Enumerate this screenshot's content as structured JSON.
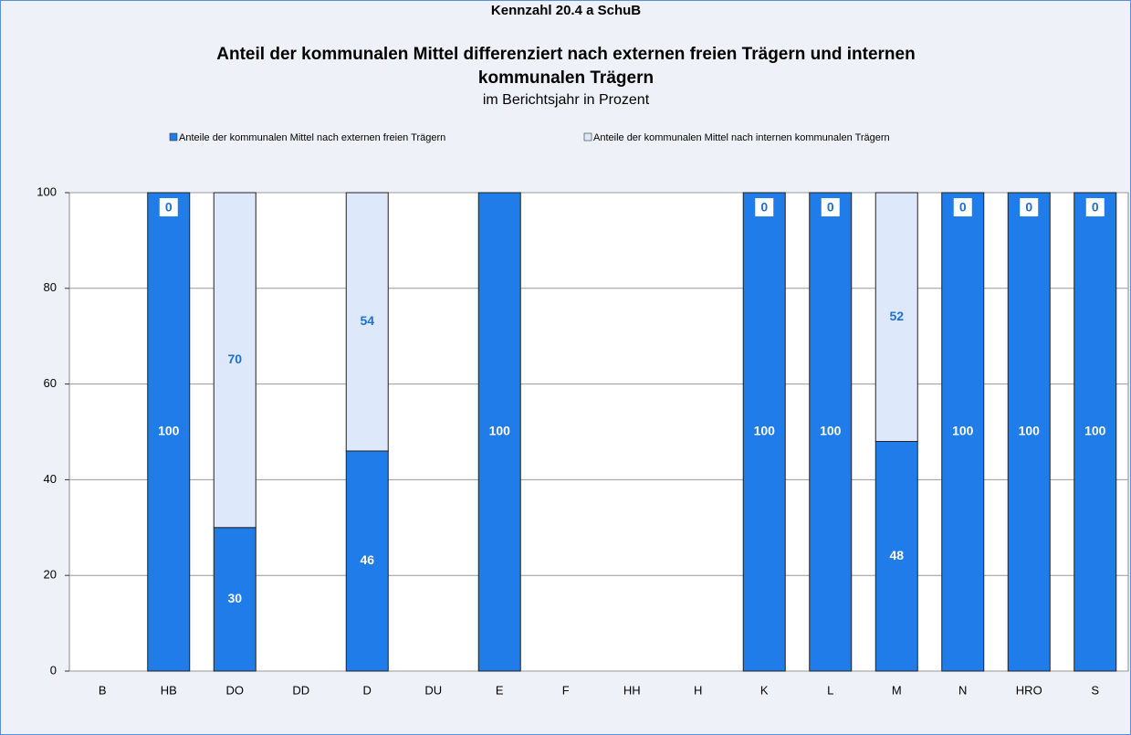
{
  "chart_data": {
    "type": "stacked_bar",
    "title": "Kennzahl 20.4 a SchuB",
    "heading": [
      "Anteil der kommunalen Mittel differenziert nach externen freien Trägern und internen",
      "kommunalen Trägern"
    ],
    "subtitle": "im Berichtsjahr in Prozent",
    "categories": [
      "B",
      "HB",
      "DO",
      "DD",
      "D",
      "DU",
      "E",
      "F",
      "HH",
      "H",
      "K",
      "L",
      "M",
      "N",
      "HRO",
      "S"
    ],
    "series": [
      {
        "name": "Anteile der kommunalen Mittel nach externen freien Trägern",
        "color": "#1f7ce8",
        "values": [
          null,
          100,
          30,
          null,
          46,
          null,
          100,
          null,
          null,
          null,
          100,
          100,
          48,
          100,
          100,
          100
        ]
      },
      {
        "name": "Anteile der kommunalen Mittel nach internen kommunalen Trägern",
        "color": "#dde8fb",
        "values": [
          null,
          0,
          70,
          null,
          54,
          null,
          null,
          null,
          null,
          null,
          0,
          0,
          52,
          0,
          0,
          0
        ]
      }
    ],
    "ylim": [
      0,
      100
    ],
    "yticks": [
      0,
      20,
      40,
      60,
      80,
      100
    ],
    "grid": true,
    "legend": "top"
  }
}
